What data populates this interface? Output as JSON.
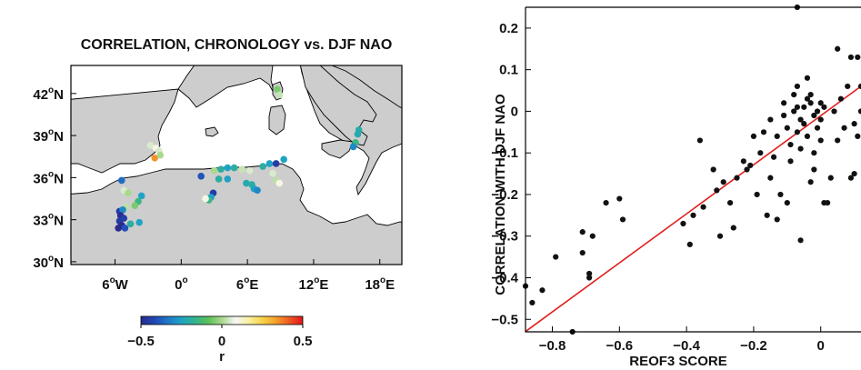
{
  "map_panel": {
    "title": "CORRELATION, CHRONOLOGY vs. DJF NAO",
    "lat_ticks": [
      {
        "deg": "42",
        "suffix": "N",
        "lat": 42
      },
      {
        "deg": "39",
        "suffix": "N",
        "lat": 39
      },
      {
        "deg": "36",
        "suffix": "N",
        "lat": 36
      },
      {
        "deg": "33",
        "suffix": "N",
        "lat": 33
      },
      {
        "deg": "30",
        "suffix": "N",
        "lat": 30
      }
    ],
    "lon_ticks": [
      {
        "deg": "6",
        "suffix": "W",
        "lon": -6
      },
      {
        "deg": "0",
        "suffix": "",
        "lon": 0
      },
      {
        "deg": "6",
        "suffix": "E",
        "lon": 6
      },
      {
        "deg": "12",
        "suffix": "E",
        "lon": 12
      },
      {
        "deg": "18",
        "suffix": "E",
        "lon": 18
      }
    ],
    "colorbar": {
      "label": "r",
      "ticks": [
        {
          "label": "−0.5",
          "v": -0.5
        },
        {
          "label": "0",
          "v": 0
        },
        {
          "label": "0.5",
          "v": 0.5
        }
      ],
      "colors": [
        "#2b2a8e",
        "#2148b6",
        "#1f78c8",
        "#1fa3c4",
        "#33b38c",
        "#5cc05a",
        "#a9d98c",
        "#f7f7f7",
        "#f8f0a0",
        "#f7d34a",
        "#f5a02b",
        "#ee5a24",
        "#e3141b"
      ]
    },
    "colors": {
      "land": "#cdcdcd",
      "sea": "#ffffff",
      "coast": "#000000"
    },
    "sites": [
      {
        "lon": -2.8,
        "lat": 38.3,
        "r": 0.05
      },
      {
        "lon": -2.3,
        "lat": 38.1,
        "r": 0.1
      },
      {
        "lon": -2.0,
        "lat": 37.9,
        "r": 0.05
      },
      {
        "lon": -2.4,
        "lat": 37.4,
        "r": 0.35
      },
      {
        "lon": -1.9,
        "lat": 37.6,
        "r": 0.0
      },
      {
        "lon": -5.4,
        "lat": 35.8,
        "r": -0.35
      },
      {
        "lon": -5.2,
        "lat": 35.1,
        "r": 0.05
      },
      {
        "lon": -4.8,
        "lat": 34.9,
        "r": 0.0
      },
      {
        "lon": -3.6,
        "lat": 34.7,
        "r": -0.25
      },
      {
        "lon": -3.9,
        "lat": 34.3,
        "r": -0.15
      },
      {
        "lon": -4.2,
        "lat": 34.0,
        "r": -0.05
      },
      {
        "lon": -5.0,
        "lat": 33.9,
        "r": 0.02
      },
      {
        "lon": -5.6,
        "lat": 33.6,
        "r": -0.45
      },
      {
        "lon": -5.3,
        "lat": 33.7,
        "r": -0.3
      },
      {
        "lon": -5.5,
        "lat": 33.3,
        "r": -0.5
      },
      {
        "lon": -5.2,
        "lat": 33.1,
        "r": -0.45
      },
      {
        "lon": -5.6,
        "lat": 32.9,
        "r": -0.45
      },
      {
        "lon": -5.4,
        "lat": 32.6,
        "r": -0.5
      },
      {
        "lon": -5.1,
        "lat": 32.4,
        "r": -0.4
      },
      {
        "lon": -5.7,
        "lat": 32.4,
        "r": -0.5
      },
      {
        "lon": -4.6,
        "lat": 32.7,
        "r": -0.2
      },
      {
        "lon": -3.8,
        "lat": 32.8,
        "r": -0.25
      },
      {
        "lon": 3.0,
        "lat": 36.5,
        "r": 0.0
      },
      {
        "lon": 3.6,
        "lat": 36.6,
        "r": -0.2
      },
      {
        "lon": 4.2,
        "lat": 36.7,
        "r": -0.25
      },
      {
        "lon": 4.8,
        "lat": 36.7,
        "r": -0.2
      },
      {
        "lon": 5.5,
        "lat": 36.6,
        "r": 0.03
      },
      {
        "lon": 6.2,
        "lat": 36.5,
        "r": 0.05
      },
      {
        "lon": 1.8,
        "lat": 36.1,
        "r": -0.4
      },
      {
        "lon": 3.4,
        "lat": 35.9,
        "r": -0.2
      },
      {
        "lon": 4.2,
        "lat": 35.9,
        "r": -0.25
      },
      {
        "lon": 5.9,
        "lat": 35.6,
        "r": -0.22
      },
      {
        "lon": 6.4,
        "lat": 35.5,
        "r": -0.2
      },
      {
        "lon": 6.6,
        "lat": 35.2,
        "r": -0.25
      },
      {
        "lon": 6.9,
        "lat": 35.1,
        "r": -0.3
      },
      {
        "lon": 2.9,
        "lat": 34.9,
        "r": -0.45
      },
      {
        "lon": 2.7,
        "lat": 34.6,
        "r": -0.25
      },
      {
        "lon": 2.5,
        "lat": 34.4,
        "r": -0.15
      },
      {
        "lon": 2.2,
        "lat": 34.5,
        "r": 0.1
      },
      {
        "lon": 7.4,
        "lat": 36.8,
        "r": -0.2
      },
      {
        "lon": 8.0,
        "lat": 37.0,
        "r": -0.25
      },
      {
        "lon": 8.6,
        "lat": 37.0,
        "r": -0.45
      },
      {
        "lon": 9.3,
        "lat": 37.3,
        "r": -0.25
      },
      {
        "lon": 8.3,
        "lat": 36.3,
        "r": 0.05
      },
      {
        "lon": 8.6,
        "lat": 35.8,
        "r": 0.02
      },
      {
        "lon": 8.9,
        "lat": 35.6,
        "r": 0.1
      },
      {
        "lon": 8.7,
        "lat": 42.3,
        "r": -0.05
      },
      {
        "lon": 8.9,
        "lat": 41.9,
        "r": 0.03
      },
      {
        "lon": 16.1,
        "lat": 39.4,
        "r": -0.2
      },
      {
        "lon": 16.0,
        "lat": 39.1,
        "r": -0.22
      },
      {
        "lon": 15.8,
        "lat": 38.5,
        "r": -0.15
      },
      {
        "lon": 15.6,
        "lat": 38.2,
        "r": -0.3
      }
    ]
  },
  "chart_data": {
    "type": "scatter",
    "title": "",
    "xlabel": "REOF3 SCORE",
    "ylabel": "CORRELATION WITH DJF NAO",
    "xlim": [
      -0.88,
      0.12
    ],
    "ylim": [
      -0.53,
      0.25
    ],
    "xticks": [
      {
        "label": "−0.8",
        "v": -0.8
      },
      {
        "label": "−0.6",
        "v": -0.6
      },
      {
        "label": "−0.4",
        "v": -0.4
      },
      {
        "label": "−0.2",
        "v": -0.2
      },
      {
        "label": "0",
        "v": 0
      }
    ],
    "yticks": [
      {
        "label": "0.2",
        "v": 0.2
      },
      {
        "label": "0.1",
        "v": 0.1
      },
      {
        "label": "0",
        "v": 0
      },
      {
        "label": "−0.1",
        "v": -0.1
      },
      {
        "label": "−0.2",
        "v": -0.2
      },
      {
        "label": "−0.3",
        "v": -0.3
      },
      {
        "label": "−0.4",
        "v": -0.4
      },
      {
        "label": "−0.5",
        "v": -0.5
      }
    ],
    "grid": false,
    "point_color": "#111111",
    "fit_color": "#e02020",
    "points": [
      [
        -0.88,
        -0.42
      ],
      [
        -0.86,
        -0.46
      ],
      [
        -0.83,
        -0.43
      ],
      [
        -0.79,
        -0.35
      ],
      [
        -0.74,
        -0.53
      ],
      [
        -0.71,
        -0.29
      ],
      [
        -0.71,
        -0.34
      ],
      [
        -0.69,
        -0.39
      ],
      [
        -0.69,
        -0.4
      ],
      [
        -0.68,
        -0.3
      ],
      [
        -0.64,
        -0.22
      ],
      [
        -0.6,
        -0.21
      ],
      [
        -0.59,
        -0.26
      ],
      [
        -0.41,
        -0.27
      ],
      [
        -0.39,
        -0.32
      ],
      [
        -0.38,
        -0.25
      ],
      [
        -0.36,
        -0.07
      ],
      [
        -0.35,
        -0.23
      ],
      [
        -0.32,
        -0.14
      ],
      [
        -0.31,
        -0.19
      ],
      [
        -0.3,
        -0.3
      ],
      [
        -0.29,
        -0.17
      ],
      [
        -0.27,
        -0.22
      ],
      [
        -0.26,
        -0.28
      ],
      [
        -0.25,
        -0.16
      ],
      [
        -0.23,
        -0.12
      ],
      [
        -0.22,
        -0.14
      ],
      [
        -0.21,
        -0.13
      ],
      [
        -0.19,
        -0.2
      ],
      [
        -0.18,
        -0.1
      ],
      [
        -0.17,
        -0.05
      ],
      [
        -0.16,
        -0.25
      ],
      [
        -0.15,
        -0.16
      ],
      [
        -0.14,
        -0.11
      ],
      [
        -0.13,
        -0.26
      ],
      [
        -0.13,
        -0.06
      ],
      [
        -0.12,
        -0.2
      ],
      [
        -0.11,
        -0.01
      ],
      [
        -0.11,
        0.02
      ],
      [
        -0.1,
        -0.04
      ],
      [
        -0.1,
        -0.22
      ],
      [
        -0.09,
        -0.12
      ],
      [
        -0.09,
        -0.08
      ],
      [
        -0.08,
        0.0
      ],
      [
        -0.08,
        0.04
      ],
      [
        -0.07,
        -0.05
      ],
      [
        -0.07,
        0.06
      ],
      [
        -0.06,
        -0.02
      ],
      [
        -0.06,
        -0.09
      ],
      [
        -0.05,
        0.01
      ],
      [
        -0.05,
        -0.03
      ],
      [
        -0.04,
        -0.06
      ],
      [
        -0.04,
        0.03
      ],
      [
        -0.03,
        0.04
      ],
      [
        -0.03,
        0.02
      ],
      [
        -0.02,
        -0.01
      ],
      [
        -0.02,
        -0.1
      ],
      [
        -0.01,
        -0.04
      ],
      [
        -0.01,
        0.0
      ],
      [
        0.0,
        -0.07
      ],
      [
        0.0,
        -0.02
      ],
      [
        -0.07,
        0.01
      ],
      [
        -0.06,
        -0.31
      ],
      [
        -0.04,
        0.08
      ],
      [
        -0.03,
        -0.17
      ],
      [
        -0.02,
        -0.14
      ],
      [
        0.01,
        -0.22
      ],
      [
        0.01,
        0.01
      ],
      [
        0.02,
        -0.22
      ],
      [
        0.03,
        -0.16
      ],
      [
        0.04,
        0.0
      ],
      [
        0.05,
        -0.07
      ],
      [
        0.06,
        0.03
      ],
      [
        0.07,
        -0.04
      ],
      [
        0.08,
        0.06
      ],
      [
        0.09,
        -0.16
      ],
      [
        0.1,
        -0.15
      ],
      [
        0.1,
        -0.03
      ],
      [
        0.11,
        0.13
      ],
      [
        0.12,
        0.0
      ],
      [
        -0.07,
        0.25
      ],
      [
        0.0,
        0.02
      ],
      [
        -0.15,
        -0.02
      ],
      [
        -0.2,
        -0.06
      ],
      [
        0.05,
        0.15
      ],
      [
        0.09,
        0.13
      ],
      [
        0.11,
        -0.06
      ],
      [
        0.12,
        0.06
      ]
    ],
    "fit": {
      "slope": 0.5895,
      "intercept": -0.0106
    }
  }
}
